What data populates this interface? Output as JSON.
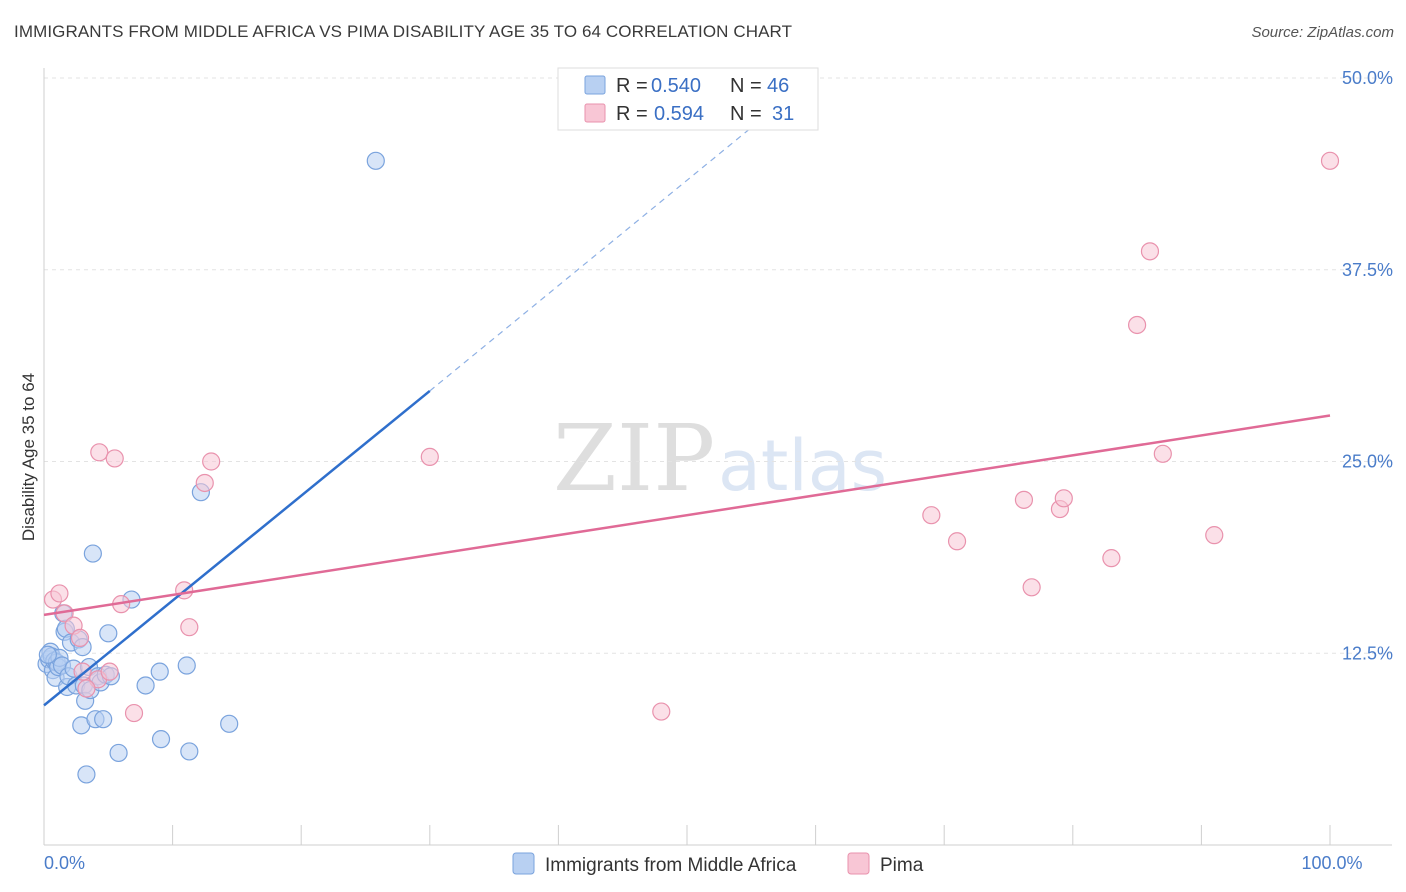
{
  "title": "IMMIGRANTS FROM MIDDLE AFRICA VS PIMA DISABILITY AGE 35 TO 64 CORRELATION CHART",
  "source": "Source: ZipAtlas.com",
  "watermark": {
    "zip": "ZIP",
    "atlas": "atlas"
  },
  "colors": {
    "blue_fill": "#b8d0f2",
    "blue_stroke": "#7aa3dd",
    "blue_line": "#2f6fcc",
    "pink_fill": "#f8c6d5",
    "pink_stroke": "#e992ad",
    "pink_line": "#e06a96",
    "tick_text": "#4a7cc9",
    "grid": "#e3e3e3"
  },
  "legend": {
    "rows": [
      {
        "r_label": "R = ",
        "r_value": "0.540",
        "n_label": "N = ",
        "n_value": "46"
      },
      {
        "r_label": "R = ",
        "r_value": "0.594",
        "n_label": "N = ",
        "n_value": "31"
      }
    ]
  },
  "chart_data": {
    "type": "scatter",
    "title": "IMMIGRANTS FROM MIDDLE AFRICA VS PIMA DISABILITY AGE 35 TO 64 CORRELATION CHART",
    "xlabel": "",
    "ylabel": "Disability Age 35 to 64",
    "xlim": [
      0,
      100
    ],
    "ylim": [
      0,
      50
    ],
    "x_tick_labels": [
      {
        "value": 0,
        "label": "0.0%"
      },
      {
        "value": 100,
        "label": "100.0%"
      }
    ],
    "y_tick_labels": [
      {
        "value": 12.5,
        "label": "12.5%"
      },
      {
        "value": 25.0,
        "label": "25.0%"
      },
      {
        "value": 37.5,
        "label": "37.5%"
      },
      {
        "value": 50.0,
        "label": "50.0%"
      }
    ],
    "grid": "horizontal dashed",
    "legend_position": "top-center",
    "series": [
      {
        "name": "Immigrants from Middle Africa",
        "color": "#b8d0f2",
        "r": 0.54,
        "n": 46,
        "trend": {
          "x0": 0,
          "y0": 9.1,
          "x1": 30,
          "y1": 29.6,
          "dashed_to_x": 60,
          "dashed_to_y": 50.2
        },
        "points": [
          [
            0.2,
            11.8
          ],
          [
            0.4,
            12.1
          ],
          [
            0.5,
            12.6
          ],
          [
            0.6,
            12.3
          ],
          [
            0.7,
            11.4
          ],
          [
            0.8,
            12.0
          ],
          [
            0.9,
            10.9
          ],
          [
            1.0,
            11.9
          ],
          [
            1.1,
            11.6
          ],
          [
            1.2,
            12.2
          ],
          [
            1.4,
            11.7
          ],
          [
            1.5,
            15.1
          ],
          [
            1.6,
            13.9
          ],
          [
            1.7,
            14.1
          ],
          [
            1.8,
            10.3
          ],
          [
            1.9,
            11.0
          ],
          [
            2.1,
            13.2
          ],
          [
            2.3,
            11.5
          ],
          [
            2.5,
            10.4
          ],
          [
            2.7,
            13.4
          ],
          [
            2.9,
            7.8
          ],
          [
            3.0,
            12.9
          ],
          [
            3.1,
            10.4
          ],
          [
            3.2,
            9.4
          ],
          [
            3.3,
            4.6
          ],
          [
            3.5,
            11.6
          ],
          [
            3.6,
            10.1
          ],
          [
            3.8,
            19.0
          ],
          [
            4.0,
            8.2
          ],
          [
            4.2,
            11.0
          ],
          [
            4.4,
            10.6
          ],
          [
            4.6,
            8.2
          ],
          [
            4.8,
            11.1
          ],
          [
            5.0,
            13.8
          ],
          [
            5.2,
            11.0
          ],
          [
            5.8,
            6.0
          ],
          [
            6.8,
            16.0
          ],
          [
            7.9,
            10.4
          ],
          [
            9.0,
            11.3
          ],
          [
            9.1,
            6.9
          ],
          [
            11.1,
            11.7
          ],
          [
            11.3,
            6.1
          ],
          [
            12.2,
            23.0
          ],
          [
            14.4,
            7.9
          ],
          [
            25.8,
            44.6
          ],
          [
            0.3,
            12.4
          ]
        ]
      },
      {
        "name": "Pima",
        "color": "#f8c6d5",
        "r": 0.594,
        "n": 31,
        "trend": {
          "x0": 0,
          "y0": 15.0,
          "x1": 100,
          "y1": 28.0
        },
        "points": [
          [
            0.7,
            16.0
          ],
          [
            1.2,
            16.4
          ],
          [
            1.6,
            15.1
          ],
          [
            2.3,
            14.3
          ],
          [
            2.8,
            13.5
          ],
          [
            3.0,
            11.3
          ],
          [
            4.2,
            10.8
          ],
          [
            4.3,
            25.6
          ],
          [
            5.1,
            11.3
          ],
          [
            5.5,
            25.2
          ],
          [
            6.0,
            15.7
          ],
          [
            7.0,
            8.6
          ],
          [
            10.9,
            16.6
          ],
          [
            11.3,
            14.2
          ],
          [
            12.5,
            23.6
          ],
          [
            13.0,
            25.0
          ],
          [
            30.0,
            25.3
          ],
          [
            48.0,
            8.7
          ],
          [
            69.0,
            21.5
          ],
          [
            71.0,
            19.8
          ],
          [
            76.2,
            22.5
          ],
          [
            76.8,
            16.8
          ],
          [
            79.0,
            21.9
          ],
          [
            79.3,
            22.6
          ],
          [
            83.0,
            18.7
          ],
          [
            85.0,
            33.9
          ],
          [
            86.0,
            38.7
          ],
          [
            87.0,
            25.5
          ],
          [
            91.0,
            20.2
          ],
          [
            100.0,
            44.6
          ],
          [
            3.3,
            10.2
          ]
        ]
      }
    ]
  }
}
